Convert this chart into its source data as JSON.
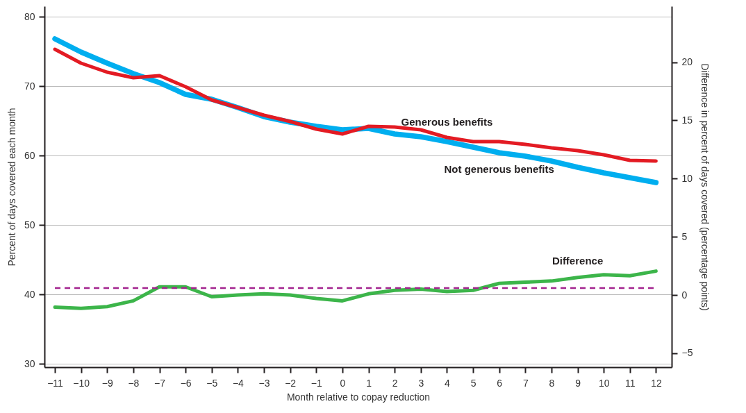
{
  "chart_data": {
    "type": "line",
    "xlabel": "Month relative to copay reduction",
    "ylabel": "Percent of days covered each month",
    "y2label": "Difference in percent of days covered (percentage points)",
    "x": [
      -11,
      -10,
      -9,
      -8,
      -7,
      -6,
      -5,
      -4,
      -3,
      -2,
      -1,
      0,
      1,
      2,
      3,
      4,
      5,
      6,
      7,
      8,
      9,
      10,
      11,
      12
    ],
    "xlim": [
      -11.4,
      12.6
    ],
    "xticks": [
      -11,
      -10,
      -9,
      -8,
      -7,
      -6,
      -5,
      -4,
      -3,
      -2,
      -1,
      0,
      1,
      2,
      3,
      4,
      5,
      6,
      7,
      8,
      9,
      10,
      11,
      12
    ],
    "ylim": [
      29.5,
      81.5
    ],
    "yticks": [
      30,
      40,
      50,
      60,
      70,
      80
    ],
    "y2lim": [
      -6.2,
      24.8
    ],
    "y2ticks": [
      -5,
      0,
      5,
      10,
      15,
      20
    ],
    "grid": "y",
    "line_style": "solid",
    "ref_lines": [
      {
        "axis": "y2",
        "value": 0.6,
        "color": "#a3238e",
        "line_style": "dashed"
      }
    ],
    "series": [
      {
        "name": "Not generous benefits",
        "color": "#00aeef",
        "values": [
          76.8,
          74.9,
          73.3,
          71.8,
          70.5,
          68.8,
          68.1,
          66.9,
          65.6,
          64.8,
          64.2,
          63.7,
          63.9,
          63.1,
          62.7,
          62.0,
          61.2,
          60.4,
          59.9,
          59.2,
          58.3,
          57.5,
          56.8,
          56.1
        ]
      },
      {
        "name": "Generous benefits",
        "color": "#e31b23",
        "values": [
          75.3,
          73.3,
          72.0,
          71.2,
          71.5,
          69.9,
          68.0,
          66.9,
          65.8,
          64.9,
          63.8,
          63.1,
          64.2,
          64.1,
          63.7,
          62.6,
          62.0,
          62.0,
          61.6,
          61.1,
          60.7,
          60.1,
          59.3,
          59.2
        ]
      },
      {
        "name": "Difference",
        "color": "#3cb54a",
        "axis": "y2",
        "values": [
          -1.05,
          -1.15,
          -1.0,
          -0.5,
          0.7,
          0.7,
          -0.15,
          0.0,
          0.1,
          0.0,
          -0.3,
          -0.5,
          0.1,
          0.4,
          0.5,
          0.3,
          0.4,
          1.0,
          1.1,
          1.2,
          1.5,
          1.75,
          1.65,
          2.05
        ]
      }
    ]
  }
}
